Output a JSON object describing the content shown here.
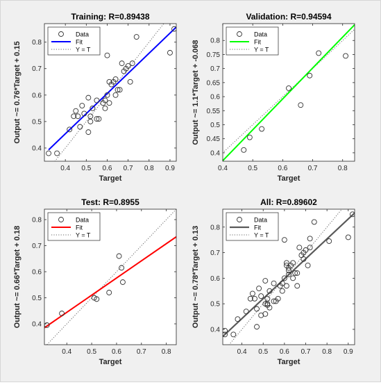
{
  "chart_data": [
    {
      "type": "scatter",
      "title": "Training: R=0.89438",
      "xlabel": "Target",
      "ylabel": "Output ~= 0.76*Target + 0.15",
      "xlim": [
        0.3,
        0.93
      ],
      "ylim": [
        0.35,
        0.87
      ],
      "xticks": [
        "0.4",
        "0.5",
        "0.6",
        "0.7",
        "0.8",
        "0.9"
      ],
      "yticks": [
        "0.4",
        "0.5",
        "0.6",
        "0.7",
        "0.8"
      ],
      "grid": false,
      "legend_position": "top-left",
      "fit_color": "#0000ff",
      "fit_width": 2,
      "series": [
        {
          "name": "Data",
          "marker": "circle",
          "x": [
            0.32,
            0.36,
            0.42,
            0.44,
            0.45,
            0.46,
            0.47,
            0.48,
            0.49,
            0.51,
            0.51,
            0.52,
            0.52,
            0.53,
            0.55,
            0.55,
            0.56,
            0.58,
            0.59,
            0.59,
            0.6,
            0.6,
            0.61,
            0.61,
            0.62,
            0.63,
            0.64,
            0.64,
            0.65,
            0.66,
            0.67,
            0.68,
            0.69,
            0.7,
            0.71,
            0.72,
            0.74,
            0.9,
            0.92
          ],
          "y": [
            0.38,
            0.38,
            0.47,
            0.52,
            0.54,
            0.52,
            0.48,
            0.56,
            0.53,
            0.46,
            0.59,
            0.5,
            0.52,
            0.55,
            0.51,
            0.58,
            0.51,
            0.57,
            0.55,
            0.58,
            0.6,
            0.75,
            0.57,
            0.65,
            0.64,
            0.65,
            0.66,
            0.6,
            0.62,
            0.62,
            0.72,
            0.69,
            0.7,
            0.71,
            0.65,
            0.72,
            0.82,
            0.76,
            0.85
          ]
        },
        {
          "name": "Fit",
          "type": "line",
          "x": [
            0.32,
            0.93
          ],
          "y": [
            0.393,
            0.857
          ]
        },
        {
          "name": "Y = T",
          "type": "line",
          "style": "dotted",
          "x": [
            0.3,
            0.93
          ],
          "y": [
            0.3,
            0.93
          ]
        }
      ]
    },
    {
      "type": "scatter",
      "title": "Validation: R=0.94594",
      "xlabel": "Target",
      "ylabel": "Output ~= 1.1*Target + -0.068",
      "xlim": [
        0.4,
        0.84
      ],
      "ylim": [
        0.37,
        0.86
      ],
      "xticks": [
        "0.4",
        "0.5",
        "0.6",
        "0.7",
        "0.8"
      ],
      "yticks": [
        "0.4",
        "0.45",
        "0.5",
        "0.55",
        "0.6",
        "0.65",
        "0.7",
        "0.75",
        "0.8"
      ],
      "grid": false,
      "legend_position": "top-left",
      "fit_color": "#00ff00",
      "fit_width": 2,
      "series": [
        {
          "name": "Data",
          "marker": "circle",
          "x": [
            0.47,
            0.49,
            0.53,
            0.62,
            0.66,
            0.69,
            0.72,
            0.81
          ],
          "y": [
            0.41,
            0.455,
            0.485,
            0.63,
            0.57,
            0.675,
            0.755,
            0.745
          ]
        },
        {
          "name": "Fit",
          "type": "line",
          "x": [
            0.4,
            0.84
          ],
          "y": [
            0.372,
            0.856
          ]
        },
        {
          "name": "Y = T",
          "type": "line",
          "style": "dotted",
          "x": [
            0.37,
            0.86
          ],
          "y": [
            0.37,
            0.86
          ]
        }
      ]
    },
    {
      "type": "scatter",
      "title": "Test: R=0.8955",
      "xlabel": "Target",
      "ylabel": "Output ~= 0.66*Target + 0.18",
      "xlim": [
        0.31,
        0.84
      ],
      "ylim": [
        0.32,
        0.84
      ],
      "xticks": [
        "0.4",
        "0.5",
        "0.6",
        "0.7",
        "0.8"
      ],
      "yticks": [
        "0.4",
        "0.5",
        "0.6",
        "0.7",
        "0.8"
      ],
      "grid": false,
      "legend_position": "top-left",
      "fit_color": "#ff0000",
      "fit_width": 2,
      "series": [
        {
          "name": "Data",
          "marker": "circle",
          "x": [
            0.32,
            0.38,
            0.51,
            0.52,
            0.57,
            0.61,
            0.62,
            0.625
          ],
          "y": [
            0.395,
            0.44,
            0.5,
            0.495,
            0.52,
            0.66,
            0.615,
            0.56
          ]
        },
        {
          "name": "Fit",
          "type": "line",
          "x": [
            0.31,
            0.84
          ],
          "y": [
            0.385,
            0.734
          ]
        },
        {
          "name": "Y = T",
          "type": "line",
          "style": "dotted",
          "x": [
            0.32,
            0.84
          ],
          "y": [
            0.32,
            0.84
          ]
        }
      ]
    },
    {
      "type": "scatter",
      "title": "All: R=0.89602",
      "xlabel": "Target",
      "ylabel": "Output ~= 0.78*Target + 0.13",
      "xlim": [
        0.31,
        0.93
      ],
      "ylim": [
        0.34,
        0.87
      ],
      "xticks": [
        "0.4",
        "0.5",
        "0.6",
        "0.7",
        "0.8",
        "0.9"
      ],
      "yticks": [
        "0.4",
        "0.5",
        "0.6",
        "0.7",
        "0.8"
      ],
      "grid": false,
      "legend_position": "top-left",
      "fit_color": "#595959",
      "fit_width": 2.2,
      "series": [
        {
          "name": "Data",
          "marker": "circle",
          "x": [
            0.32,
            0.32,
            0.36,
            0.38,
            0.42,
            0.44,
            0.45,
            0.46,
            0.47,
            0.47,
            0.48,
            0.49,
            0.49,
            0.51,
            0.51,
            0.51,
            0.52,
            0.52,
            0.52,
            0.53,
            0.53,
            0.55,
            0.55,
            0.56,
            0.57,
            0.58,
            0.59,
            0.59,
            0.6,
            0.6,
            0.61,
            0.61,
            0.61,
            0.62,
            0.62,
            0.62,
            0.63,
            0.64,
            0.64,
            0.65,
            0.66,
            0.66,
            0.67,
            0.68,
            0.69,
            0.69,
            0.7,
            0.71,
            0.72,
            0.72,
            0.74,
            0.81,
            0.9,
            0.92
          ],
          "y": [
            0.38,
            0.395,
            0.38,
            0.44,
            0.47,
            0.52,
            0.54,
            0.52,
            0.48,
            0.41,
            0.56,
            0.53,
            0.455,
            0.46,
            0.59,
            0.5,
            0.5,
            0.52,
            0.495,
            0.55,
            0.485,
            0.51,
            0.58,
            0.51,
            0.52,
            0.57,
            0.55,
            0.58,
            0.6,
            0.75,
            0.57,
            0.65,
            0.66,
            0.64,
            0.63,
            0.615,
            0.65,
            0.66,
            0.6,
            0.62,
            0.62,
            0.57,
            0.72,
            0.69,
            0.7,
            0.675,
            0.71,
            0.65,
            0.72,
            0.755,
            0.82,
            0.745,
            0.76,
            0.85
          ]
        },
        {
          "name": "Fit",
          "type": "line",
          "x": [
            0.31,
            0.93
          ],
          "y": [
            0.372,
            0.855
          ]
        },
        {
          "name": "Y = T",
          "type": "line",
          "style": "dotted",
          "x": [
            0.31,
            0.93
          ],
          "y": [
            0.31,
            0.93
          ]
        }
      ]
    }
  ]
}
